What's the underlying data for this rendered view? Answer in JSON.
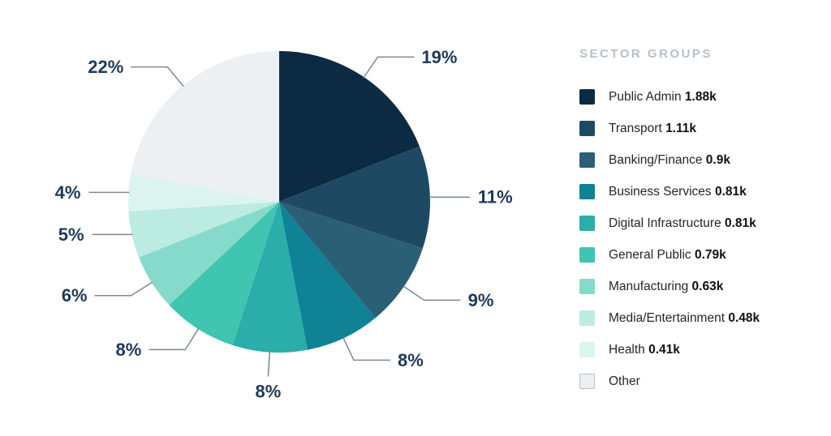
{
  "page": {
    "background": "#ffffff"
  },
  "chart_data": {
    "type": "pie",
    "title": "",
    "legend_title": "SECTOR GROUPS",
    "legend_position": "right",
    "start_angle": "12 o'clock",
    "direction": "clockwise",
    "slices": [
      {
        "name": "public-admin",
        "label": "Public Admin",
        "count": "1.88k",
        "pct": 19,
        "pct_label": "19%",
        "color": "#0d2a43"
      },
      {
        "name": "transport",
        "label": "Transport",
        "count": "1.11k",
        "pct": 11,
        "pct_label": "11%",
        "color": "#1d4a62"
      },
      {
        "name": "banking-finance",
        "label": "Banking/Finance",
        "count": "0.9k",
        "pct": 9,
        "pct_label": "9%",
        "color": "#2b5f75"
      },
      {
        "name": "business-services",
        "label": "Business Services",
        "count": "0.81k",
        "pct": 8,
        "pct_label": "8%",
        "color": "#0f8295"
      },
      {
        "name": "digital-infrastructure",
        "label": "Digital Infrastructure",
        "count": "0.81k",
        "pct": 8,
        "pct_label": "8%",
        "color": "#2badaa"
      },
      {
        "name": "general-public",
        "label": "General Public",
        "count": "0.79k",
        "pct": 8,
        "pct_label": "8%",
        "color": "#40c5b1"
      },
      {
        "name": "manufacturing",
        "label": "Manufacturing",
        "count": "0.63k",
        "pct": 6,
        "pct_label": "6%",
        "color": "#85dacb"
      },
      {
        "name": "media-entertainment",
        "label": "Media/Entertainment",
        "count": "0.48k",
        "pct": 5,
        "pct_label": "5%",
        "color": "#bcebe2"
      },
      {
        "name": "health",
        "label": "Health",
        "count": "0.41k",
        "pct": 4,
        "pct_label": "4%",
        "color": "#dcf4f0"
      },
      {
        "name": "other",
        "label": "Other",
        "count": "",
        "pct": 22,
        "pct_label": "22%",
        "color": "#ecf0f2",
        "swatch_border": "#b4c0c8"
      }
    ],
    "styles": {
      "percent_label_color": "#1d3a58",
      "leader_line_color": "#7b8a93",
      "legend_title_color": "#b5c0ca",
      "legend_text_color": "#262626",
      "legend_value_color": "#111111"
    }
  }
}
